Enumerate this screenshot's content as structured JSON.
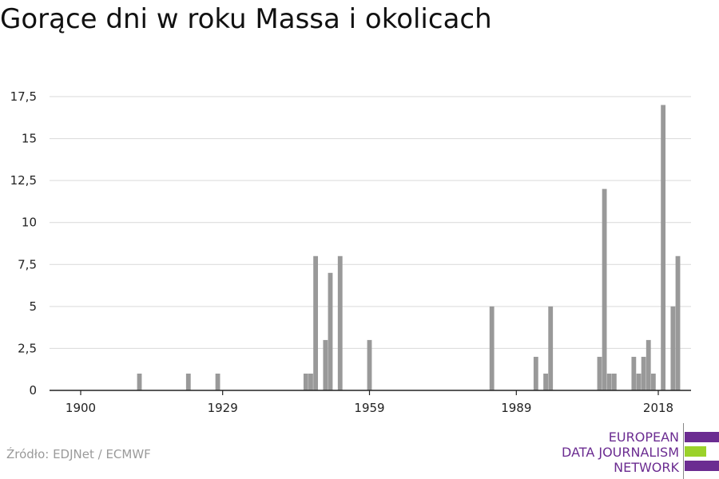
{
  "chart_data": {
    "type": "bar",
    "title": "Gorące dni w roku Massa i okolicach",
    "xlabel": "",
    "ylabel": "",
    "x_range": [
      1900,
      2018
    ],
    "x_ticks": [
      1900,
      1929,
      1959,
      1989,
      2018
    ],
    "x_tick_labels": [
      "1900",
      "1929",
      "1959",
      "1989",
      "2018"
    ],
    "ylim": [
      0,
      17.5
    ],
    "y_ticks": [
      0,
      2.5,
      5,
      7.5,
      10,
      12.5,
      15,
      17.5
    ],
    "y_tick_labels": [
      "0",
      "2,5",
      "5",
      "7,5",
      "10",
      "12,5",
      "15",
      "17,5"
    ],
    "grid": true,
    "bar_color": "#999999",
    "years": [
      1912,
      1922,
      1928,
      1946,
      1947,
      1948,
      1950,
      1951,
      1953,
      1959,
      1984,
      1993,
      1995,
      1996,
      2006,
      2007,
      2008,
      2009,
      2013,
      2014,
      2015,
      2016,
      2017,
      2019,
      2021,
      2022
    ],
    "values": [
      1,
      1,
      1,
      1,
      1,
      8,
      3,
      7,
      8,
      3,
      5,
      2,
      1,
      5,
      2,
      12,
      1,
      1,
      2,
      1,
      2,
      3,
      1,
      17,
      5,
      8
    ]
  },
  "footer": {
    "source": "Źródło: EDJNet / ECMWF"
  },
  "logo": {
    "line1": "EUROPEAN",
    "line2": "DATA JOURNALISM",
    "line3": "NETWORK",
    "purple": "#6b2c91",
    "green": "#9bd22a"
  }
}
